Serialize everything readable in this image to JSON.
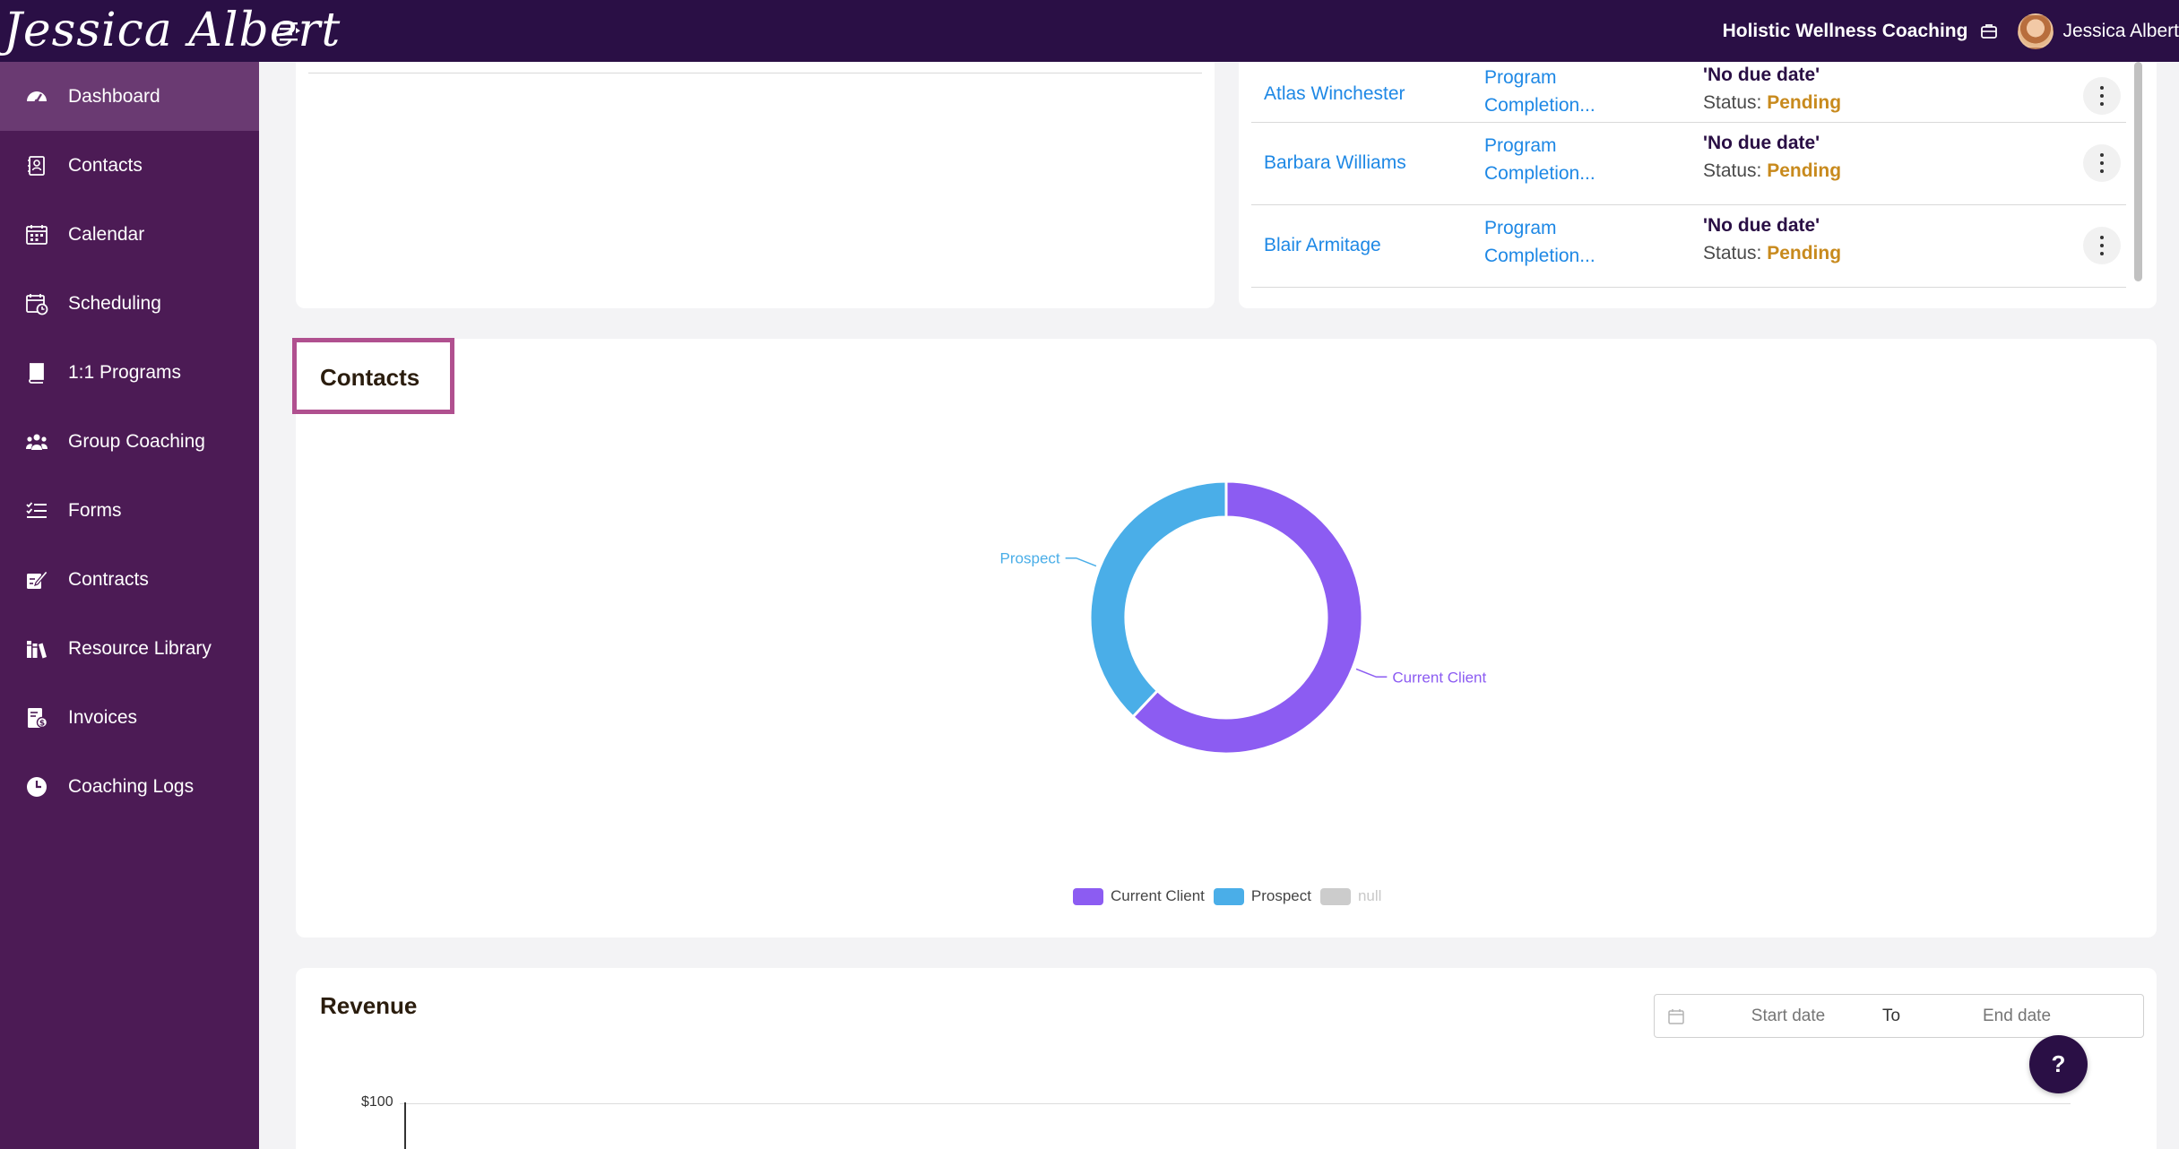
{
  "header": {
    "brand": "Jessica Albert",
    "org_name": "Holistic Wellness Coaching",
    "user_name": "Jessica Albert"
  },
  "sidebar": {
    "items": [
      {
        "label": "Dashboard",
        "icon": "dashboard-icon",
        "active": true
      },
      {
        "label": "Contacts",
        "icon": "contacts-icon"
      },
      {
        "label": "Calendar",
        "icon": "calendar-icon"
      },
      {
        "label": "Scheduling",
        "icon": "scheduling-icon"
      },
      {
        "label": "1:1 Programs",
        "icon": "book-icon"
      },
      {
        "label": "Group Coaching",
        "icon": "group-icon"
      },
      {
        "label": "Forms",
        "icon": "forms-icon"
      },
      {
        "label": "Contracts",
        "icon": "contract-icon"
      },
      {
        "label": "Resource Library",
        "icon": "library-icon"
      },
      {
        "label": "Invoices",
        "icon": "invoice-icon"
      },
      {
        "label": "Coaching Logs",
        "icon": "clock-icon"
      }
    ]
  },
  "tasks": {
    "rows": [
      {
        "contact": "Atlas Winchester",
        "program_line1": "Program",
        "program_line2": "Completion...",
        "due": "'No due date'",
        "status_label": "Status:",
        "status": "Pending"
      },
      {
        "contact": "Barbara Williams",
        "program_line1": "Program",
        "program_line2": "Completion...",
        "due": "'No due date'",
        "status_label": "Status:",
        "status": "Pending"
      },
      {
        "contact": "Blair Armitage",
        "program_line1": "Program",
        "program_line2": "Completion...",
        "due": "'No due date'",
        "status_label": "Status:",
        "status": "Pending"
      }
    ]
  },
  "contacts_card": {
    "title": "Contacts"
  },
  "chart_data": {
    "type": "pie",
    "variant": "donut",
    "categories": [
      "Current Client",
      "Prospect",
      "null"
    ],
    "values": [
      62,
      38,
      0
    ],
    "colors": [
      "#8c5cf2",
      "#4aaee8",
      "#cccccc"
    ],
    "legend_position": "bottom",
    "title": ""
  },
  "revenue": {
    "title": "Revenue",
    "start_placeholder": "Start date",
    "to_label": "To",
    "end_placeholder": "End date",
    "y_tick_top": "$100"
  },
  "help": {
    "label": "?"
  }
}
